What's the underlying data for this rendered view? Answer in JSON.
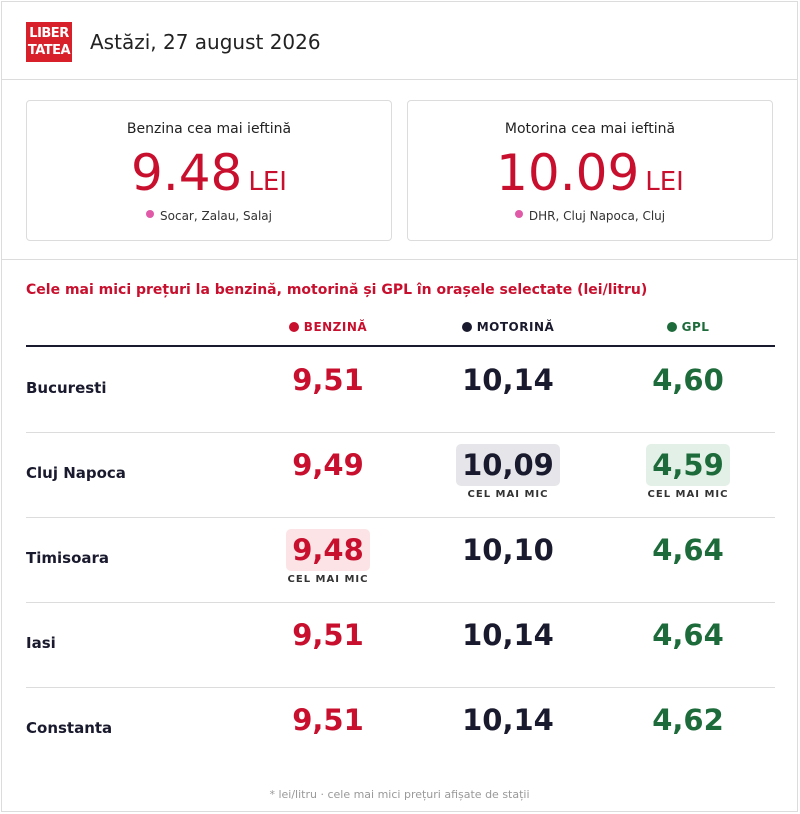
{
  "header": {
    "logo_line1": "LIBER",
    "logo_line2": "TATEA",
    "date": "Astăzi, 27 august 2026"
  },
  "cards": [
    {
      "title": "Benzina cea mai ieftină",
      "price": "9.48",
      "unit": "LEI",
      "location": "Socar, Zalau, Salaj"
    },
    {
      "title": "Motorina cea mai ieftină",
      "price": "10.09",
      "unit": "LEI",
      "location": "DHR, Cluj Napoca, Cluj"
    }
  ],
  "section_title": "Cele mai mici prețuri la benzină, motorină și GPL în orașele selectate (lei/litru)",
  "columns": {
    "benzina": "BENZINĂ",
    "motorina": "MOTORINĂ",
    "gpl": "GPL"
  },
  "lowest_tag": "CEL MAI MIC",
  "rows": [
    {
      "city": "Bucuresti",
      "benzina": "9,51",
      "motorina": "10,14",
      "gpl": "4,60"
    },
    {
      "city": "Cluj Napoca",
      "benzina": "9,49",
      "motorina": "10,09",
      "gpl": "4,59"
    },
    {
      "city": "Timisoara",
      "benzina": "9,48",
      "motorina": "10,10",
      "gpl": "4,64"
    },
    {
      "city": "Iasi",
      "benzina": "9,51",
      "motorina": "10,14",
      "gpl": "4,64"
    },
    {
      "city": "Constanta",
      "benzina": "9,51",
      "motorina": "10,14",
      "gpl": "4,62"
    }
  ],
  "colors": {
    "benzina": "#c8102e",
    "motorina": "#1a1a2e",
    "gpl": "#1d6b3a",
    "logo": "#d8202a"
  },
  "footnote": "* lei/litru · cele mai mici prețuri afișate de stații"
}
